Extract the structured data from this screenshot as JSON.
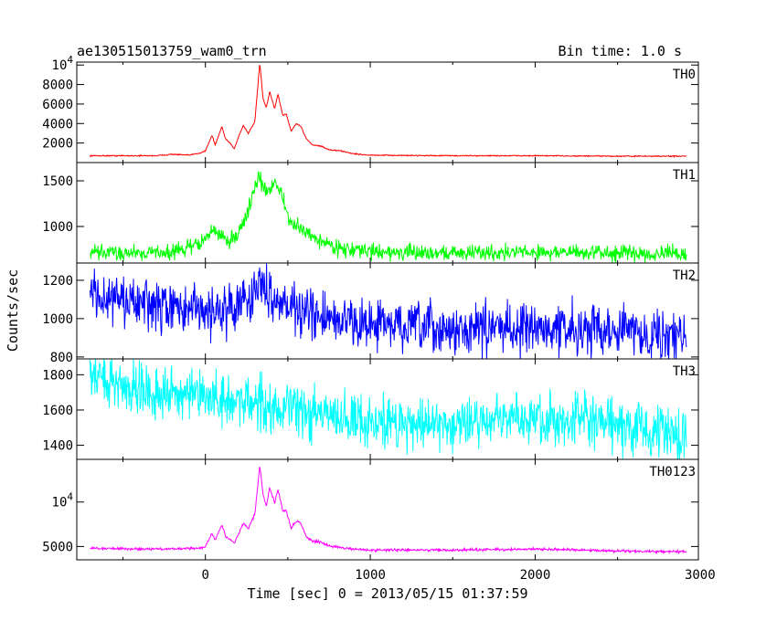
{
  "header": {
    "title": "ae130515013759_wam0_trn",
    "bin_time": "Bin time: 1.0 s"
  },
  "chart_data": {
    "type": "line",
    "title": "ae130515013759_wam0_trn",
    "xlabel": "Time [sec] 0 = 2013/05/15 01:37:59",
    "ylabel": "Counts/sec",
    "xlim": [
      -780,
      2990
    ],
    "x_ticks": [
      0,
      1000,
      2000,
      3000
    ],
    "x_tick_labels": [
      "0",
      "1000",
      "2000",
      "3000"
    ],
    "grid": false,
    "panels": [
      {
        "name": "TH0",
        "color": "#ff0000",
        "ylim": [
          0,
          10300
        ],
        "y_ticks": [
          2000,
          4000,
          6000,
          8000,
          10000
        ],
        "y_tick_labels": [
          "2000",
          "4000",
          "6000",
          "8000",
          "10^4"
        ],
        "noise": 40,
        "series": [
          [
            -700,
            700
          ],
          [
            -300,
            700
          ],
          [
            -200,
            850
          ],
          [
            -100,
            750
          ],
          [
            -30,
            1000
          ],
          [
            0,
            1200
          ],
          [
            40,
            2800
          ],
          [
            60,
            1800
          ],
          [
            100,
            3700
          ],
          [
            120,
            2500
          ],
          [
            150,
            2000
          ],
          [
            175,
            1400
          ],
          [
            200,
            2600
          ],
          [
            230,
            3800
          ],
          [
            260,
            3000
          ],
          [
            300,
            4200
          ],
          [
            330,
            10200
          ],
          [
            350,
            6500
          ],
          [
            370,
            5600
          ],
          [
            390,
            7300
          ],
          [
            420,
            5500
          ],
          [
            440,
            7000
          ],
          [
            470,
            4800
          ],
          [
            490,
            5000
          ],
          [
            520,
            3200
          ],
          [
            550,
            4000
          ],
          [
            580,
            3700
          ],
          [
            610,
            2500
          ],
          [
            650,
            1800
          ],
          [
            700,
            1700
          ],
          [
            750,
            1300
          ],
          [
            820,
            1200
          ],
          [
            900,
            900
          ],
          [
            1000,
            750
          ],
          [
            1500,
            700
          ],
          [
            2000,
            700
          ],
          [
            2500,
            650
          ],
          [
            2920,
            650
          ]
        ]
      },
      {
        "name": "TH1",
        "color": "#00ff00",
        "ylim": [
          600,
          1700
        ],
        "y_ticks": [
          1000,
          1500
        ],
        "y_tick_labels": [
          "1000",
          "1500"
        ],
        "noise": 60,
        "series": [
          [
            -700,
            710
          ],
          [
            -200,
            720
          ],
          [
            -50,
            800
          ],
          [
            0,
            870
          ],
          [
            50,
            960
          ],
          [
            100,
            890
          ],
          [
            150,
            840
          ],
          [
            200,
            930
          ],
          [
            250,
            1120
          ],
          [
            320,
            1550
          ],
          [
            370,
            1360
          ],
          [
            420,
            1500
          ],
          [
            460,
            1380
          ],
          [
            500,
            1080
          ],
          [
            550,
            1000
          ],
          [
            600,
            950
          ],
          [
            700,
            840
          ],
          [
            800,
            770
          ],
          [
            900,
            740
          ],
          [
            1200,
            710
          ],
          [
            2000,
            720
          ],
          [
            2500,
            710
          ],
          [
            2920,
            700
          ]
        ]
      },
      {
        "name": "TH2",
        "color": "#0000ff",
        "ylim": [
          790,
          1290
        ],
        "y_ticks": [
          800,
          1000,
          1200
        ],
        "y_tick_labels": [
          "800",
          "1000",
          "1200"
        ],
        "noise": 90,
        "series": [
          [
            -700,
            1130
          ],
          [
            -500,
            1090
          ],
          [
            -300,
            1060
          ],
          [
            0,
            1040
          ],
          [
            150,
            1050
          ],
          [
            250,
            1110
          ],
          [
            320,
            1160
          ],
          [
            380,
            1150
          ],
          [
            450,
            1100
          ],
          [
            550,
            1050
          ],
          [
            700,
            1000
          ],
          [
            900,
            980
          ],
          [
            1200,
            960
          ],
          [
            1500,
            935
          ],
          [
            1800,
            960
          ],
          [
            2000,
            945
          ],
          [
            2300,
            945
          ],
          [
            2500,
            950
          ],
          [
            2700,
            920
          ],
          [
            2920,
            900
          ]
        ]
      },
      {
        "name": "TH3",
        "color": "#00ffff",
        "ylim": [
          1320,
          1890
        ],
        "y_ticks": [
          1400,
          1600,
          1800
        ],
        "y_tick_labels": [
          "1400",
          "1600",
          "1800"
        ],
        "noise": 105,
        "series": [
          [
            -700,
            1800
          ],
          [
            -500,
            1740
          ],
          [
            -200,
            1690
          ],
          [
            100,
            1650
          ],
          [
            300,
            1650
          ],
          [
            450,
            1610
          ],
          [
            700,
            1570
          ],
          [
            1000,
            1535
          ],
          [
            1300,
            1520
          ],
          [
            1600,
            1535
          ],
          [
            1900,
            1550
          ],
          [
            2200,
            1540
          ],
          [
            2500,
            1510
          ],
          [
            2800,
            1460
          ],
          [
            2920,
            1440
          ]
        ]
      },
      {
        "name": "TH0123",
        "color": "#ff00ff",
        "ylim": [
          3500,
          14800
        ],
        "y_ticks": [
          5000,
          10000
        ],
        "y_tick_labels": [
          "5000",
          "10^4"
        ],
        "noise": 100,
        "series": [
          [
            -700,
            4800
          ],
          [
            -300,
            4700
          ],
          [
            -100,
            4800
          ],
          [
            -30,
            4800
          ],
          [
            0,
            5000
          ],
          [
            40,
            6500
          ],
          [
            60,
            5700
          ],
          [
            100,
            7500
          ],
          [
            125,
            6000
          ],
          [
            150,
            5800
          ],
          [
            175,
            5400
          ],
          [
            200,
            6400
          ],
          [
            230,
            7600
          ],
          [
            260,
            7000
          ],
          [
            300,
            8600
          ],
          [
            330,
            14100
          ],
          [
            350,
            10800
          ],
          [
            370,
            9500
          ],
          [
            390,
            11600
          ],
          [
            420,
            9900
          ],
          [
            440,
            11400
          ],
          [
            470,
            9000
          ],
          [
            490,
            9100
          ],
          [
            520,
            7000
          ],
          [
            550,
            7900
          ],
          [
            580,
            7600
          ],
          [
            610,
            6100
          ],
          [
            650,
            5600
          ],
          [
            700,
            5500
          ],
          [
            750,
            5100
          ],
          [
            820,
            4900
          ],
          [
            900,
            4700
          ],
          [
            1000,
            4600
          ],
          [
            1500,
            4600
          ],
          [
            2000,
            4700
          ],
          [
            2500,
            4500
          ],
          [
            2920,
            4400
          ]
        ]
      }
    ]
  }
}
